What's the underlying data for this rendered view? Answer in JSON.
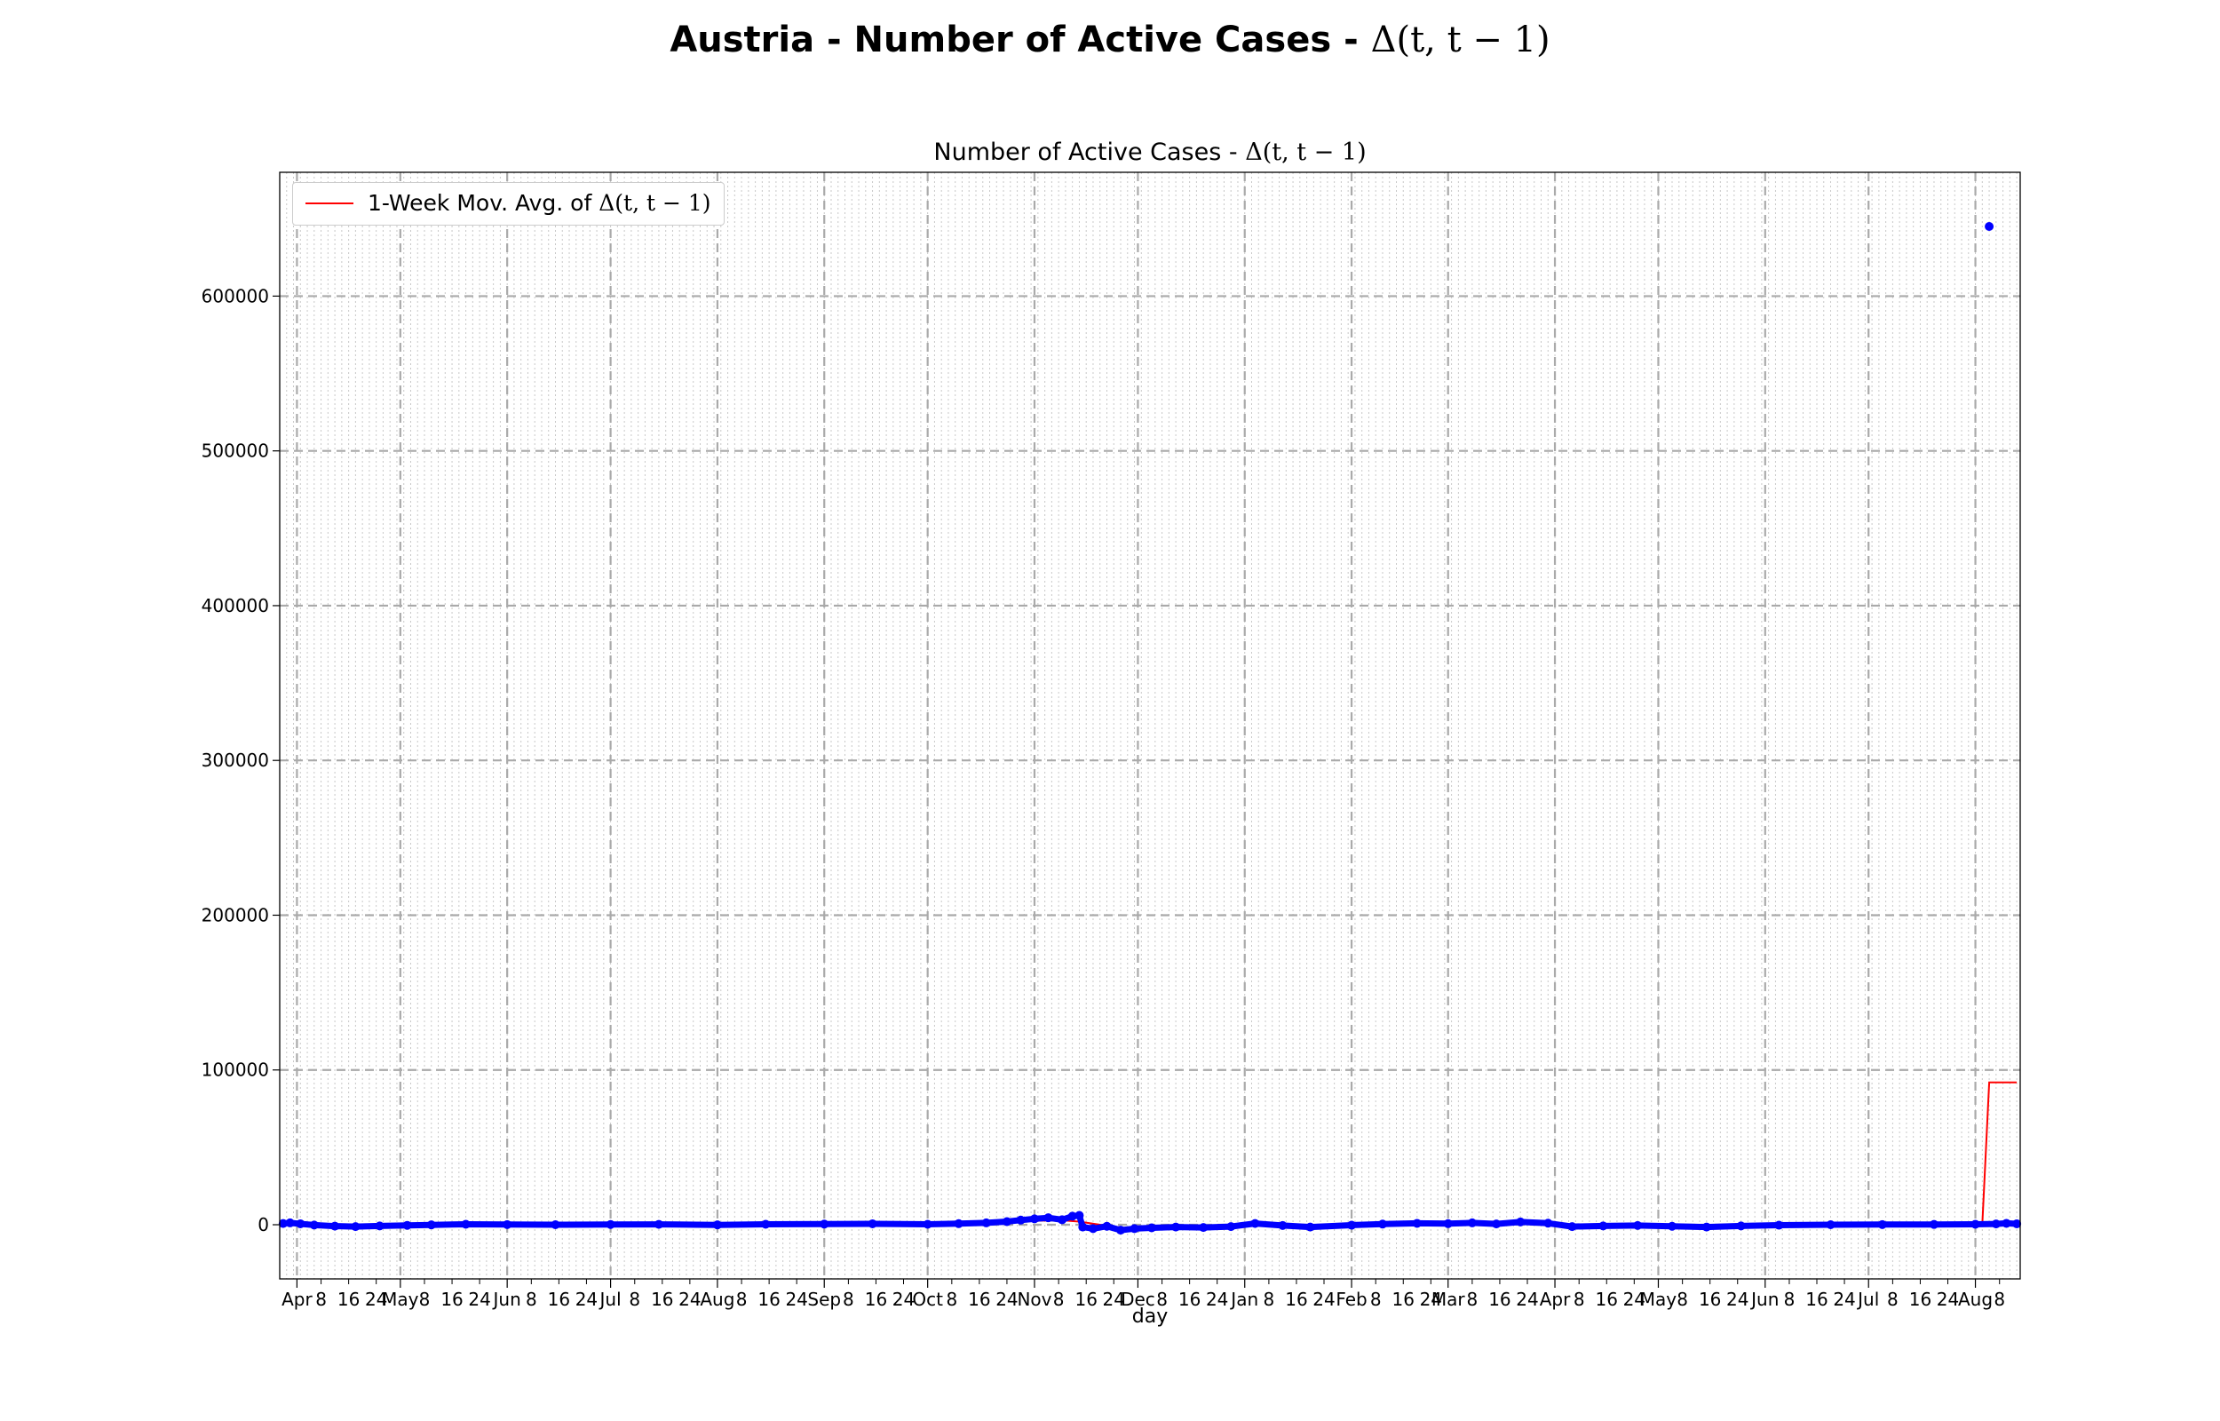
{
  "suptitle": {
    "text": "Austria - Number of Active Cases - ",
    "math": "Δ(t, t − 1)"
  },
  "chart_data": {
    "type": "scatter",
    "title": "Number of Active Cases - ",
    "title_math": "Δ(t, t − 1)",
    "xlabel": "day",
    "ylabel": "",
    "x_range": [
      "2020-03-27",
      "2021-08-14"
    ],
    "ylim": [
      -35000,
      680000
    ],
    "y_ticks": [
      0,
      100000,
      200000,
      300000,
      400000,
      500000,
      600000
    ],
    "x_ticks": [
      {
        "date": "2020-04-01",
        "label": "Apr",
        "major": true
      },
      {
        "date": "2020-04-08",
        "label": "8"
      },
      {
        "date": "2020-04-16",
        "label": "16"
      },
      {
        "date": "2020-04-24",
        "label": "24"
      },
      {
        "date": "2020-05-01",
        "label": "May",
        "major": true
      },
      {
        "date": "2020-05-08",
        "label": "8"
      },
      {
        "date": "2020-05-16",
        "label": "16"
      },
      {
        "date": "2020-05-24",
        "label": "24"
      },
      {
        "date": "2020-06-01",
        "label": "Jun",
        "major": true
      },
      {
        "date": "2020-06-08",
        "label": "8"
      },
      {
        "date": "2020-06-16",
        "label": "16"
      },
      {
        "date": "2020-06-24",
        "label": "24"
      },
      {
        "date": "2020-07-01",
        "label": "Jul",
        "major": true
      },
      {
        "date": "2020-07-08",
        "label": "8"
      },
      {
        "date": "2020-07-16",
        "label": "16"
      },
      {
        "date": "2020-07-24",
        "label": "24"
      },
      {
        "date": "2020-08-01",
        "label": "Aug",
        "major": true
      },
      {
        "date": "2020-08-08",
        "label": "8"
      },
      {
        "date": "2020-08-16",
        "label": "16"
      },
      {
        "date": "2020-08-24",
        "label": "24"
      },
      {
        "date": "2020-09-01",
        "label": "Sep",
        "major": true
      },
      {
        "date": "2020-09-08",
        "label": "8"
      },
      {
        "date": "2020-09-16",
        "label": "16"
      },
      {
        "date": "2020-09-24",
        "label": "24"
      },
      {
        "date": "2020-10-01",
        "label": "Oct",
        "major": true
      },
      {
        "date": "2020-10-08",
        "label": "8"
      },
      {
        "date": "2020-10-16",
        "label": "16"
      },
      {
        "date": "2020-10-24",
        "label": "24"
      },
      {
        "date": "2020-11-01",
        "label": "Nov",
        "major": true
      },
      {
        "date": "2020-11-08",
        "label": "8"
      },
      {
        "date": "2020-11-16",
        "label": "16"
      },
      {
        "date": "2020-11-24",
        "label": "24"
      },
      {
        "date": "2020-12-01",
        "label": "Dec",
        "major": true
      },
      {
        "date": "2020-12-08",
        "label": "8"
      },
      {
        "date": "2020-12-16",
        "label": "16"
      },
      {
        "date": "2020-12-24",
        "label": "24"
      },
      {
        "date": "2021-01-01",
        "label": "Jan",
        "major": true
      },
      {
        "date": "2021-01-08",
        "label": "8"
      },
      {
        "date": "2021-01-16",
        "label": "16"
      },
      {
        "date": "2021-01-24",
        "label": "24"
      },
      {
        "date": "2021-02-01",
        "label": "Feb",
        "major": true
      },
      {
        "date": "2021-02-08",
        "label": "8"
      },
      {
        "date": "2021-02-16",
        "label": "16"
      },
      {
        "date": "2021-02-24",
        "label": "24"
      },
      {
        "date": "2021-03-01",
        "label": "Mar",
        "major": true
      },
      {
        "date": "2021-03-08",
        "label": "8"
      },
      {
        "date": "2021-03-16",
        "label": "16"
      },
      {
        "date": "2021-03-24",
        "label": "24"
      },
      {
        "date": "2021-04-01",
        "label": "Apr",
        "major": true
      },
      {
        "date": "2021-04-08",
        "label": "8"
      },
      {
        "date": "2021-04-16",
        "label": "16"
      },
      {
        "date": "2021-04-24",
        "label": "24"
      },
      {
        "date": "2021-05-01",
        "label": "May",
        "major": true
      },
      {
        "date": "2021-05-08",
        "label": "8"
      },
      {
        "date": "2021-05-16",
        "label": "16"
      },
      {
        "date": "2021-05-24",
        "label": "24"
      },
      {
        "date": "2021-06-01",
        "label": "Jun",
        "major": true
      },
      {
        "date": "2021-06-08",
        "label": "8"
      },
      {
        "date": "2021-06-16",
        "label": "16"
      },
      {
        "date": "2021-06-24",
        "label": "24"
      },
      {
        "date": "2021-07-01",
        "label": "Jul",
        "major": true
      },
      {
        "date": "2021-07-08",
        "label": "8"
      },
      {
        "date": "2021-07-16",
        "label": "16"
      },
      {
        "date": "2021-07-24",
        "label": "24"
      },
      {
        "date": "2021-08-01",
        "label": "Aug",
        "major": true
      },
      {
        "date": "2021-08-08",
        "label": "8"
      }
    ],
    "grid": true,
    "legend_position": "upper-left",
    "series": [
      {
        "name": "1-Week Mov. Avg. of ",
        "name_math": "Δ(t, t − 1)",
        "kind": "line",
        "color": "#ff0000",
        "points": [
          [
            "2020-03-28",
            0
          ],
          [
            "2020-04-05",
            -500
          ],
          [
            "2020-05-01",
            -300
          ],
          [
            "2020-06-01",
            0
          ],
          [
            "2020-07-01",
            0
          ],
          [
            "2020-08-01",
            0
          ],
          [
            "2020-09-01",
            100
          ],
          [
            "2020-10-01",
            200
          ],
          [
            "2020-10-15",
            500
          ],
          [
            "2020-10-25",
            1500
          ],
          [
            "2020-11-01",
            2500
          ],
          [
            "2020-11-08",
            3000
          ],
          [
            "2020-11-14",
            2000
          ],
          [
            "2020-11-20",
            0
          ],
          [
            "2020-11-27",
            -2000
          ],
          [
            "2020-12-10",
            -1500
          ],
          [
            "2020-12-25",
            -800
          ],
          [
            "2021-01-10",
            -300
          ],
          [
            "2021-02-01",
            0
          ],
          [
            "2021-03-01",
            500
          ],
          [
            "2021-03-20",
            800
          ],
          [
            "2021-04-05",
            0
          ],
          [
            "2021-04-20",
            -300
          ],
          [
            "2021-05-15",
            -700
          ],
          [
            "2021-06-01",
            -300
          ],
          [
            "2021-07-01",
            0
          ],
          [
            "2021-08-03",
            0
          ],
          [
            "2021-08-05",
            92000
          ],
          [
            "2021-08-13",
            92000
          ]
        ]
      },
      {
        "name": "",
        "kind": "points",
        "color": "#0000ff",
        "points": [
          [
            "2020-03-28",
            800
          ],
          [
            "2020-03-30",
            1200
          ],
          [
            "2020-04-02",
            600
          ],
          [
            "2020-04-06",
            -200
          ],
          [
            "2020-04-12",
            -900
          ],
          [
            "2020-04-18",
            -1200
          ],
          [
            "2020-04-25",
            -800
          ],
          [
            "2020-05-03",
            -400
          ],
          [
            "2020-05-10",
            -100
          ],
          [
            "2020-05-20",
            300
          ],
          [
            "2020-06-01",
            100
          ],
          [
            "2020-06-15",
            0
          ],
          [
            "2020-07-01",
            150
          ],
          [
            "2020-07-15",
            250
          ],
          [
            "2020-08-01",
            -100
          ],
          [
            "2020-08-15",
            300
          ],
          [
            "2020-09-01",
            400
          ],
          [
            "2020-09-15",
            600
          ],
          [
            "2020-10-01",
            300
          ],
          [
            "2020-10-10",
            700
          ],
          [
            "2020-10-18",
            1200
          ],
          [
            "2020-10-24",
            2000
          ],
          [
            "2020-10-28",
            3000
          ],
          [
            "2020-11-01",
            3800
          ],
          [
            "2020-11-05",
            4500
          ],
          [
            "2020-11-09",
            3200
          ],
          [
            "2020-11-12",
            5500
          ],
          [
            "2020-11-14",
            6000
          ],
          [
            "2020-11-15",
            -1500
          ],
          [
            "2020-11-18",
            -2500
          ],
          [
            "2020-11-22",
            -1000
          ],
          [
            "2020-11-26",
            -3500
          ],
          [
            "2020-11-30",
            -2500
          ],
          [
            "2020-12-05",
            -2000
          ],
          [
            "2020-12-12",
            -1500
          ],
          [
            "2020-12-20",
            -1800
          ],
          [
            "2020-12-28",
            -1200
          ],
          [
            "2021-01-04",
            800
          ],
          [
            "2021-01-12",
            -500
          ],
          [
            "2021-01-20",
            -1500
          ],
          [
            "2021-02-01",
            -300
          ],
          [
            "2021-02-10",
            400
          ],
          [
            "2021-02-20",
            900
          ],
          [
            "2021-03-01",
            700
          ],
          [
            "2021-03-08",
            1200
          ],
          [
            "2021-03-15",
            500
          ],
          [
            "2021-03-22",
            1800
          ],
          [
            "2021-03-30",
            1000
          ],
          [
            "2021-04-06",
            -1200
          ],
          [
            "2021-04-15",
            -800
          ],
          [
            "2021-04-25",
            -500
          ],
          [
            "2021-05-05",
            -1000
          ],
          [
            "2021-05-15",
            -1500
          ],
          [
            "2021-05-25",
            -800
          ],
          [
            "2021-06-05",
            -300
          ],
          [
            "2021-06-20",
            0
          ],
          [
            "2021-07-05",
            100
          ],
          [
            "2021-07-20",
            200
          ],
          [
            "2021-08-01",
            300
          ],
          [
            "2021-08-05",
            645000
          ],
          [
            "2021-08-07",
            500
          ],
          [
            "2021-08-10",
            900
          ],
          [
            "2021-08-13",
            600
          ]
        ]
      }
    ]
  }
}
